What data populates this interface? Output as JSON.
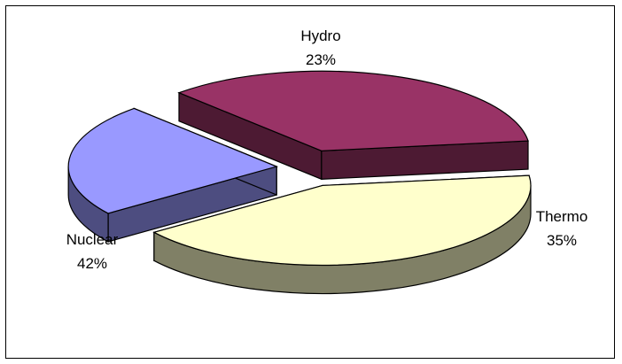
{
  "chart_data": {
    "type": "pie",
    "style": "3d-exploded",
    "title": "",
    "slices": [
      {
        "label": "Hydro",
        "value": 23,
        "value_label": "23%",
        "color": "#9999ff",
        "side_color": "#4d4d80"
      },
      {
        "label": "Thermo",
        "value": 35,
        "value_label": "35%",
        "color": "#993366",
        "side_color": "#4d1a33"
      },
      {
        "label": "Nuclear",
        "value": 42,
        "value_label": "42%",
        "color": "#ffffcc",
        "side_color": "#808066"
      }
    ],
    "legend": "none"
  }
}
